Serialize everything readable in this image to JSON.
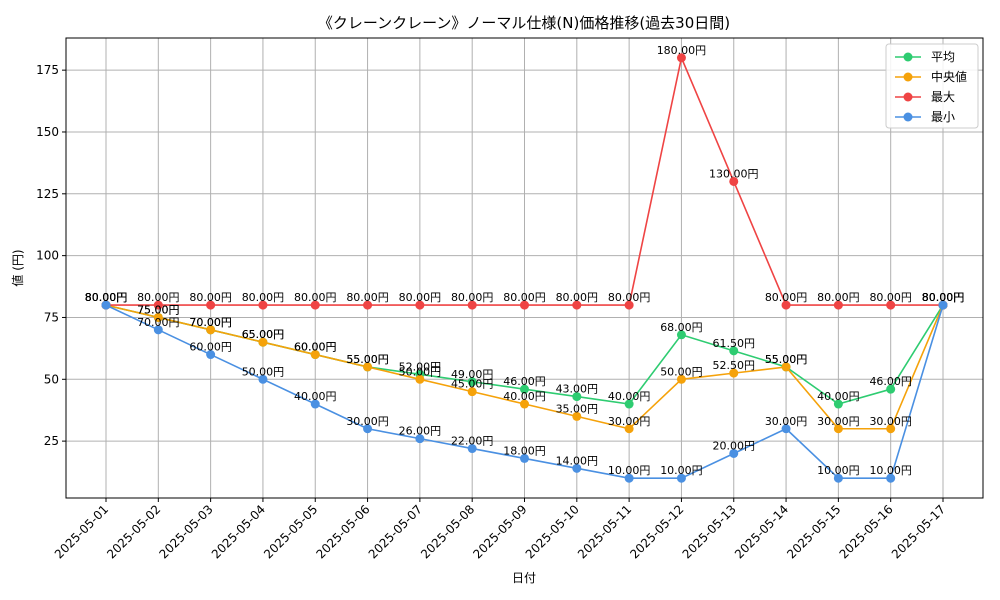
{
  "chart_data": {
    "type": "line",
    "title": "《クレーンクレーン》ノーマル仕様(N)価格推移(過去30日間)",
    "xlabel": "日付",
    "ylabel": "値 (円)",
    "ylim": [
      2,
      188
    ],
    "yticks": [
      25,
      50,
      75,
      100,
      125,
      150,
      175
    ],
    "grid": true,
    "legend_position": "top-right",
    "value_suffix": "円",
    "categories": [
      "2025-05-01",
      "2025-05-02",
      "2025-05-03",
      "2025-05-04",
      "2025-05-05",
      "2025-05-06",
      "2025-05-07",
      "2025-05-08",
      "2025-05-09",
      "2025-05-10",
      "2025-05-11",
      "2025-05-12",
      "2025-05-13",
      "2025-05-14",
      "2025-05-15",
      "2025-05-16",
      "2025-05-17"
    ],
    "series": [
      {
        "name": "平均",
        "color": "#2ecc71",
        "values": [
          80,
          75,
          70,
          65,
          60,
          55,
          52,
          49,
          46,
          43,
          40,
          68,
          61.5,
          55,
          40,
          46,
          80
        ]
      },
      {
        "name": "中央値",
        "color": "#f5a20a",
        "values": [
          80,
          75,
          70,
          65,
          60,
          55,
          50,
          45,
          40,
          35,
          30,
          50,
          52.5,
          55,
          30,
          30,
          80
        ]
      },
      {
        "name": "最大",
        "color": "#ef4444",
        "values": [
          80,
          80,
          80,
          80,
          80,
          80,
          80,
          80,
          80,
          80,
          80,
          180,
          130,
          80,
          80,
          80,
          80
        ]
      },
      {
        "name": "最小",
        "color": "#4a90e2",
        "values": [
          80,
          70,
          60,
          50,
          40,
          30,
          26,
          22,
          18,
          14,
          10,
          10,
          20,
          30,
          10,
          10,
          80
        ]
      }
    ]
  }
}
